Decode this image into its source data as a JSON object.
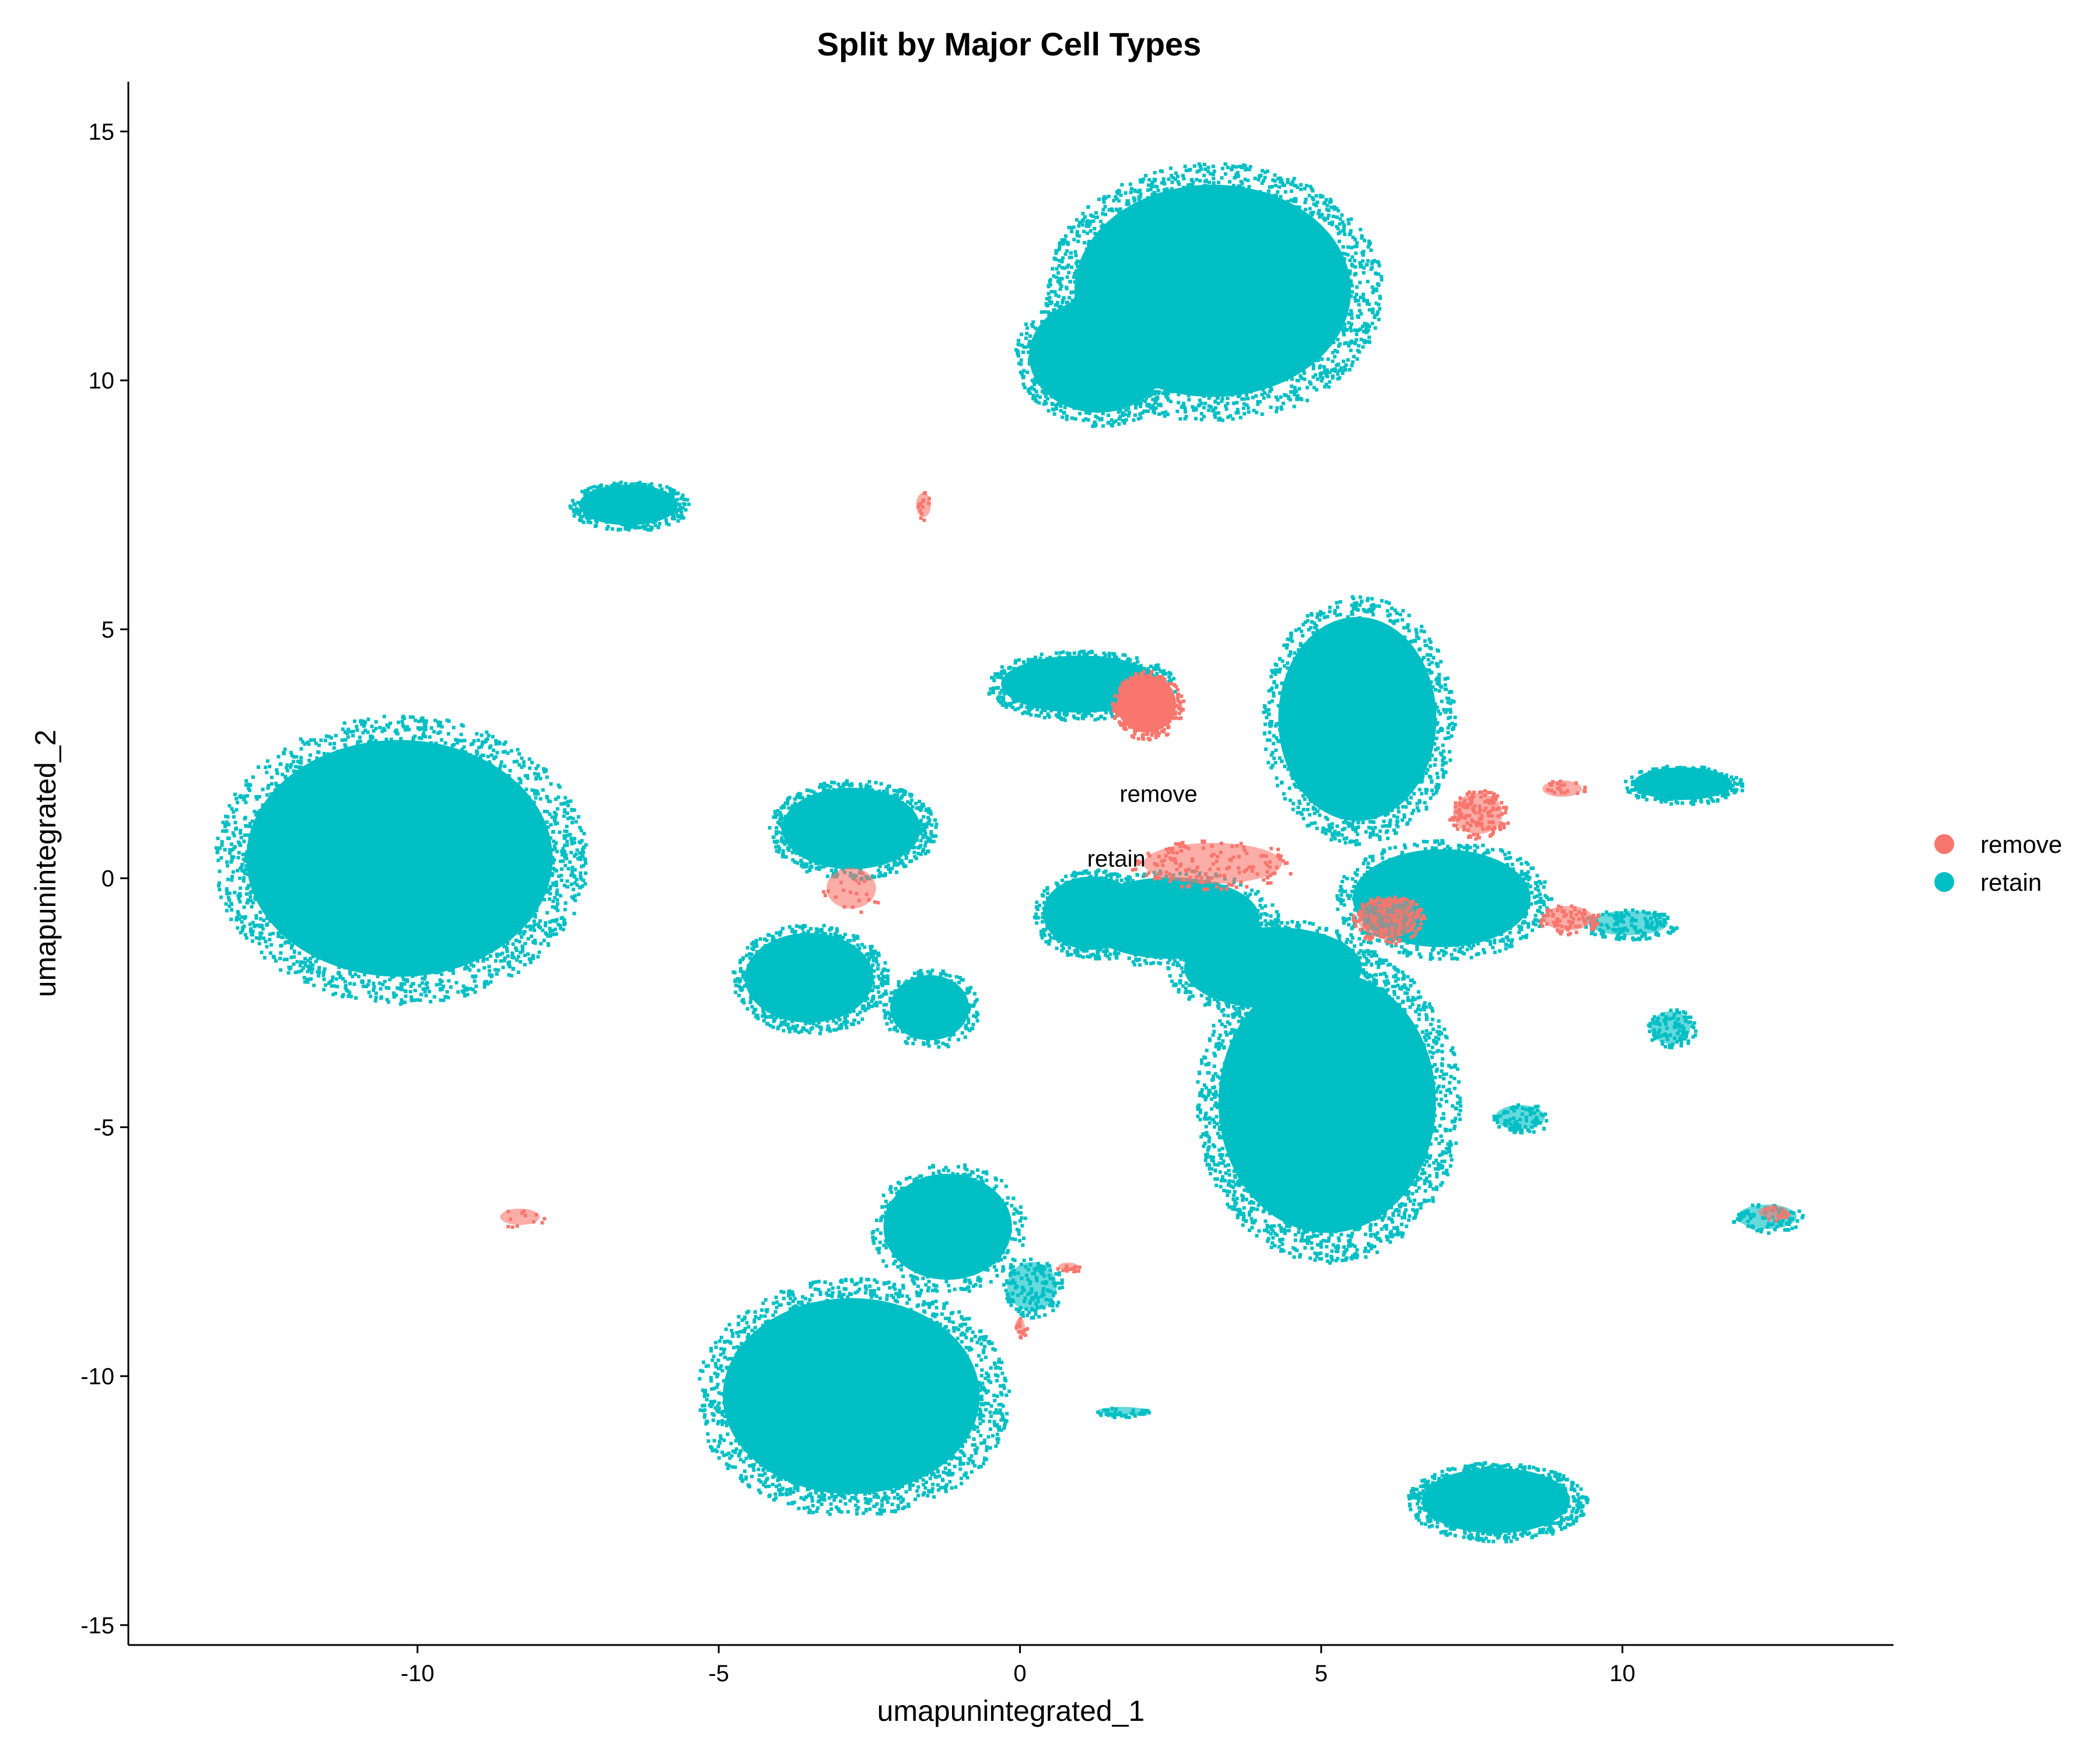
{
  "chart_data": {
    "type": "scatter",
    "title": "Split by Major Cell Types",
    "xlabel": "umapunintegrated_1",
    "ylabel": "umapunintegrated_2",
    "xlim": [
      -14.8,
      14.5
    ],
    "ylim": [
      -15.4,
      16.0
    ],
    "xticks": [
      -10,
      -5,
      0,
      5,
      10
    ],
    "yticks": [
      -15,
      -10,
      -5,
      0,
      5,
      10,
      15
    ],
    "grid": false,
    "legend_position": "right",
    "series": [
      {
        "name": "remove",
        "color": "#F8766D"
      },
      {
        "name": "retain",
        "color": "#00BFC4"
      }
    ],
    "annotations": [
      {
        "text": "remove",
        "x": 2.3,
        "y": 1.7
      },
      {
        "text": "retain",
        "x": 1.6,
        "y": 0.4
      }
    ],
    "clusters": [
      {
        "series": "retain",
        "cx": -10.3,
        "cy": 0.4,
        "rx": 3.1,
        "ry": 2.9,
        "n": 3000
      },
      {
        "series": "retain",
        "cx": 3.2,
        "cy": 11.8,
        "rx": 2.8,
        "ry": 2.6,
        "n": 2600
      },
      {
        "series": "retain",
        "cx": 1.3,
        "cy": 10.5,
        "rx": 1.4,
        "ry": 1.4,
        "n": 800
      },
      {
        "series": "retain",
        "cx": -2.8,
        "cy": -10.4,
        "rx": 2.6,
        "ry": 2.4,
        "n": 2400
      },
      {
        "series": "retain",
        "cx": -1.2,
        "cy": -7.0,
        "rx": 1.3,
        "ry": 1.3,
        "n": 500
      },
      {
        "series": "retain",
        "cx": 5.1,
        "cy": -4.5,
        "rx": 2.2,
        "ry": 3.2,
        "n": 2600
      },
      {
        "series": "retain",
        "cx": 5.6,
        "cy": 3.2,
        "rx": 1.6,
        "ry": 2.5,
        "n": 1400
      },
      {
        "series": "retain",
        "cx": 1.0,
        "cy": 3.9,
        "rx": 1.6,
        "ry": 0.7,
        "n": 700
      },
      {
        "series": "retain",
        "cx": 1.2,
        "cy": -0.7,
        "rx": 1.0,
        "ry": 0.9,
        "n": 500
      },
      {
        "series": "retain",
        "cx": 7.0,
        "cy": -0.4,
        "rx": 1.8,
        "ry": 1.2,
        "n": 800
      },
      {
        "series": "retain",
        "cx": 4.2,
        "cy": -1.8,
        "rx": 1.8,
        "ry": 1.0,
        "n": 700
      },
      {
        "series": "retain",
        "cx": -2.8,
        "cy": 1.0,
        "rx": 1.4,
        "ry": 1.0,
        "n": 800
      },
      {
        "series": "retain",
        "cx": -3.5,
        "cy": -2.0,
        "rx": 1.3,
        "ry": 1.1,
        "n": 800
      },
      {
        "series": "retain",
        "cx": -1.5,
        "cy": -2.6,
        "rx": 0.8,
        "ry": 0.8,
        "n": 300
      },
      {
        "series": "retain",
        "cx": -6.5,
        "cy": 7.5,
        "rx": 1.0,
        "ry": 0.5,
        "n": 400
      },
      {
        "series": "retain",
        "cx": 7.9,
        "cy": -12.5,
        "rx": 1.5,
        "ry": 0.8,
        "n": 800
      },
      {
        "series": "retain",
        "cx": 11.0,
        "cy": 1.9,
        "rx": 1.0,
        "ry": 0.4,
        "n": 250
      },
      {
        "series": "retain",
        "cx": 10.1,
        "cy": -0.9,
        "rx": 0.8,
        "ry": 0.3,
        "n": 150
      },
      {
        "series": "retain",
        "cx": 10.8,
        "cy": -3.0,
        "rx": 0.4,
        "ry": 0.4,
        "n": 100
      },
      {
        "series": "retain",
        "cx": 12.4,
        "cy": -6.8,
        "rx": 0.6,
        "ry": 0.3,
        "n": 80
      },
      {
        "series": "retain",
        "cx": 8.3,
        "cy": -4.8,
        "rx": 0.5,
        "ry": 0.3,
        "n": 80
      },
      {
        "series": "retain",
        "cx": 0.2,
        "cy": -8.2,
        "rx": 0.5,
        "ry": 0.6,
        "n": 150
      },
      {
        "series": "retain",
        "cx": 1.7,
        "cy": -10.7,
        "rx": 0.5,
        "ry": 0.1,
        "n": 40
      },
      {
        "series": "retain",
        "cx": 2.5,
        "cy": -0.8,
        "rx": 1.8,
        "ry": 1.0,
        "n": 400
      },
      {
        "series": "remove",
        "cx": 2.1,
        "cy": 3.5,
        "rx": 0.6,
        "ry": 0.7,
        "n": 300
      },
      {
        "series": "remove",
        "cx": 3.2,
        "cy": 0.3,
        "rx": 1.4,
        "ry": 0.5,
        "n": 150
      },
      {
        "series": "remove",
        "cx": 7.6,
        "cy": 1.3,
        "rx": 0.5,
        "ry": 0.5,
        "n": 150
      },
      {
        "series": "remove",
        "cx": 6.1,
        "cy": -0.8,
        "rx": 0.6,
        "ry": 0.5,
        "n": 150
      },
      {
        "series": "remove",
        "cx": 9.1,
        "cy": -0.8,
        "rx": 0.5,
        "ry": 0.3,
        "n": 80
      },
      {
        "series": "remove",
        "cx": -2.8,
        "cy": -0.2,
        "rx": 0.5,
        "ry": 0.5,
        "n": 20
      },
      {
        "series": "remove",
        "cx": 0.0,
        "cy": -9.0,
        "rx": 0.1,
        "ry": 0.2,
        "n": 15
      },
      {
        "series": "remove",
        "cx": 0.8,
        "cy": -7.8,
        "rx": 0.2,
        "ry": 0.1,
        "n": 15
      },
      {
        "series": "remove",
        "cx": -1.6,
        "cy": 7.5,
        "rx": 0.15,
        "ry": 0.3,
        "n": 15
      },
      {
        "series": "remove",
        "cx": -8.3,
        "cy": -6.8,
        "rx": 0.4,
        "ry": 0.2,
        "n": 12
      },
      {
        "series": "remove",
        "cx": 12.5,
        "cy": -6.7,
        "rx": 0.3,
        "ry": 0.15,
        "n": 15
      },
      {
        "series": "remove",
        "cx": 9.0,
        "cy": 1.8,
        "rx": 0.4,
        "ry": 0.2,
        "n": 20
      }
    ]
  }
}
